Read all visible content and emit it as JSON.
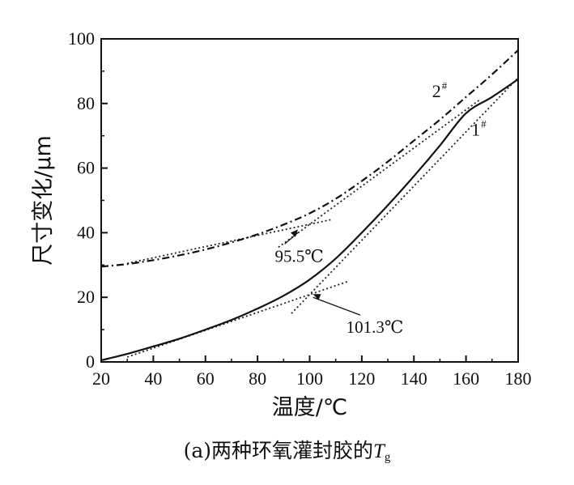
{
  "chart_data": {
    "type": "line",
    "title": "",
    "caption": {
      "text": "(a)两种环氧灌封胶的",
      "symbol": "T",
      "subscript": "g"
    },
    "xlabel": "温度/℃",
    "ylabel": "尺寸变化/μm",
    "xlim": [
      20,
      180
    ],
    "ylim": [
      0,
      100
    ],
    "x_ticks": [
      "20",
      "40",
      "60",
      "80",
      "100",
      "120",
      "140",
      "160",
      "180"
    ],
    "y_ticks": [
      "0",
      "20",
      "40",
      "60",
      "80",
      "100"
    ],
    "grid": false,
    "legend": "none",
    "series": [
      {
        "name": "1",
        "name_sup": "#",
        "style": "solid",
        "x": [
          20,
          30,
          40,
          50,
          60,
          70,
          80,
          90,
          100,
          110,
          120,
          130,
          140,
          150,
          160,
          170,
          180
        ],
        "y": [
          0.5,
          2.5,
          4.8,
          7.2,
          10,
          13,
          16.5,
          20.5,
          25.5,
          32,
          40,
          48.5,
          57.5,
          67,
          77,
          82,
          87.5
        ]
      },
      {
        "name": "2",
        "name_sup": "#",
        "style": "dash-dot",
        "x": [
          20,
          30,
          40,
          50,
          60,
          70,
          80,
          90,
          100,
          110,
          120,
          130,
          140,
          150,
          160,
          170,
          180
        ],
        "y": [
          29.5,
          30.3,
          31.5,
          33,
          34.8,
          37,
          39.5,
          42.5,
          46,
          50.5,
          56,
          62,
          68.5,
          75,
          82,
          89,
          96.5
        ]
      }
    ],
    "tangent_lines": [
      {
        "series": "2",
        "points": [
          [
            30,
            30.5
          ],
          [
            108,
            44
          ]
        ]
      },
      {
        "series": "2",
        "points": [
          [
            88,
            35.5
          ],
          [
            165,
            81
          ]
        ]
      },
      {
        "series": "1",
        "points": [
          [
            30,
            1.5
          ],
          [
            115,
            25
          ]
        ]
      },
      {
        "series": "1",
        "points": [
          [
            93,
            15
          ],
          [
            180,
            88
          ]
        ]
      }
    ],
    "annotations": [
      {
        "text": "95.5℃",
        "x": 95.5,
        "y": 41,
        "text_x": 96,
        "text_y": 31
      },
      {
        "text": "101.3℃",
        "x": 101.3,
        "y": 21,
        "text_x": 125,
        "text_y": 9
      }
    ],
    "series_labels": [
      {
        "text": "2",
        "sup": "#",
        "x": 147,
        "y": 82
      },
      {
        "text": "1",
        "sup": "#",
        "x": 162,
        "y": 70
      }
    ]
  }
}
